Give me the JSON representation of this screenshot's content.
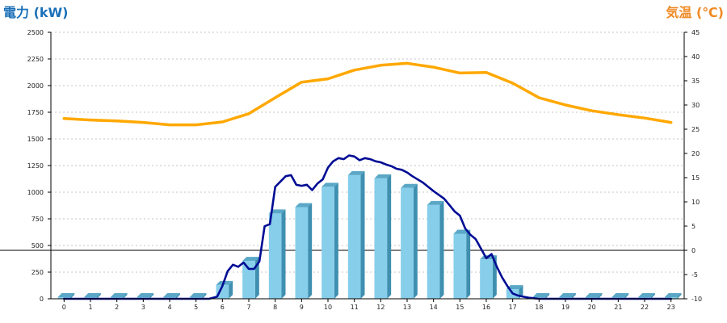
{
  "chart_data": {
    "type": "bar+line",
    "left_axis": {
      "title": "電力 (kW)",
      "color": "#1a70b8",
      "range": [
        0,
        2500
      ],
      "ticks": [
        "2500",
        "2250",
        "2000",
        "1750",
        "1500",
        "1250",
        "1000",
        "750",
        "500",
        "250",
        "0"
      ]
    },
    "right_axis": {
      "title": "気温 (℃)",
      "color": "#f08a24",
      "range": [
        -10,
        45
      ],
      "ticks": [
        "45",
        "40",
        "35",
        "30",
        "25",
        "20",
        "15",
        "10",
        "5",
        "0",
        "-5",
        "-10"
      ]
    },
    "x_axis": {
      "labels": [
        "0",
        "1",
        "2",
        "3",
        "4",
        "5",
        "6",
        "7",
        "8",
        "9",
        "10",
        "11",
        "12",
        "13",
        "14",
        "15",
        "16",
        "17",
        "18",
        "19",
        "20",
        "21",
        "22",
        "23"
      ]
    },
    "grid": "horizontal dotted",
    "reference_line_temperature": 0,
    "bars": {
      "axis": "left",
      "color": "#87ceea",
      "values": [
        12,
        12,
        12,
        12,
        12,
        12,
        130,
        355,
        800,
        860,
        1050,
        1160,
        1130,
        1040,
        880,
        610,
        370,
        90,
        15,
        12,
        12,
        12,
        12,
        12
      ]
    },
    "power_line": {
      "axis": "left",
      "color": "#000c94",
      "x": [
        0,
        1,
        2,
        3,
        4,
        5,
        5.5,
        5.8,
        6.0,
        6.2,
        6.4,
        6.6,
        6.8,
        7.0,
        7.2,
        7.4,
        7.6,
        7.8,
        8.0,
        8.2,
        8.4,
        8.6,
        8.8,
        9.0,
        9.2,
        9.4,
        9.6,
        9.8,
        10.0,
        10.2,
        10.4,
        10.6,
        10.8,
        11.0,
        11.2,
        11.4,
        11.6,
        11.8,
        12.0,
        12.2,
        12.4,
        12.6,
        12.8,
        13.0,
        13.2,
        13.4,
        13.6,
        13.8,
        14.0,
        14.2,
        14.4,
        14.6,
        14.8,
        15.0,
        15.2,
        15.4,
        15.6,
        15.8,
        16.0,
        16.2,
        16.4,
        16.6,
        16.8,
        17.0,
        17.2,
        17.4,
        17.6,
        17.8,
        18.0,
        19,
        20,
        21,
        22,
        23
      ],
      "values": [
        0,
        0,
        0,
        0,
        0,
        0,
        0,
        20,
        120,
        260,
        320,
        300,
        340,
        280,
        280,
        350,
        680,
        700,
        1050,
        1100,
        1150,
        1160,
        1070,
        1060,
        1070,
        1020,
        1080,
        1120,
        1230,
        1290,
        1320,
        1310,
        1345,
        1335,
        1300,
        1320,
        1310,
        1290,
        1280,
        1260,
        1245,
        1220,
        1210,
        1185,
        1150,
        1120,
        1090,
        1050,
        1010,
        975,
        940,
        880,
        820,
        780,
        660,
        600,
        560,
        470,
        380,
        420,
        300,
        200,
        120,
        50,
        30,
        20,
        10,
        5,
        0,
        0,
        0,
        0,
        0,
        0
      ]
    },
    "temperature_line": {
      "axis": "right",
      "color": "#ffa800",
      "x": [
        0,
        1,
        2,
        3,
        4,
        5,
        6,
        7,
        8,
        9,
        10,
        11,
        12,
        13,
        14,
        15,
        16,
        17,
        18,
        19,
        20,
        21,
        22,
        23
      ],
      "values": [
        27.2,
        26.9,
        26.7,
        26.4,
        25.9,
        25.9,
        26.5,
        28.2,
        31.5,
        34.7,
        35.4,
        37.2,
        38.2,
        38.6,
        37.8,
        36.6,
        36.7,
        34.5,
        31.5,
        30.0,
        28.8,
        28.0,
        27.3,
        26.4
      ]
    }
  }
}
